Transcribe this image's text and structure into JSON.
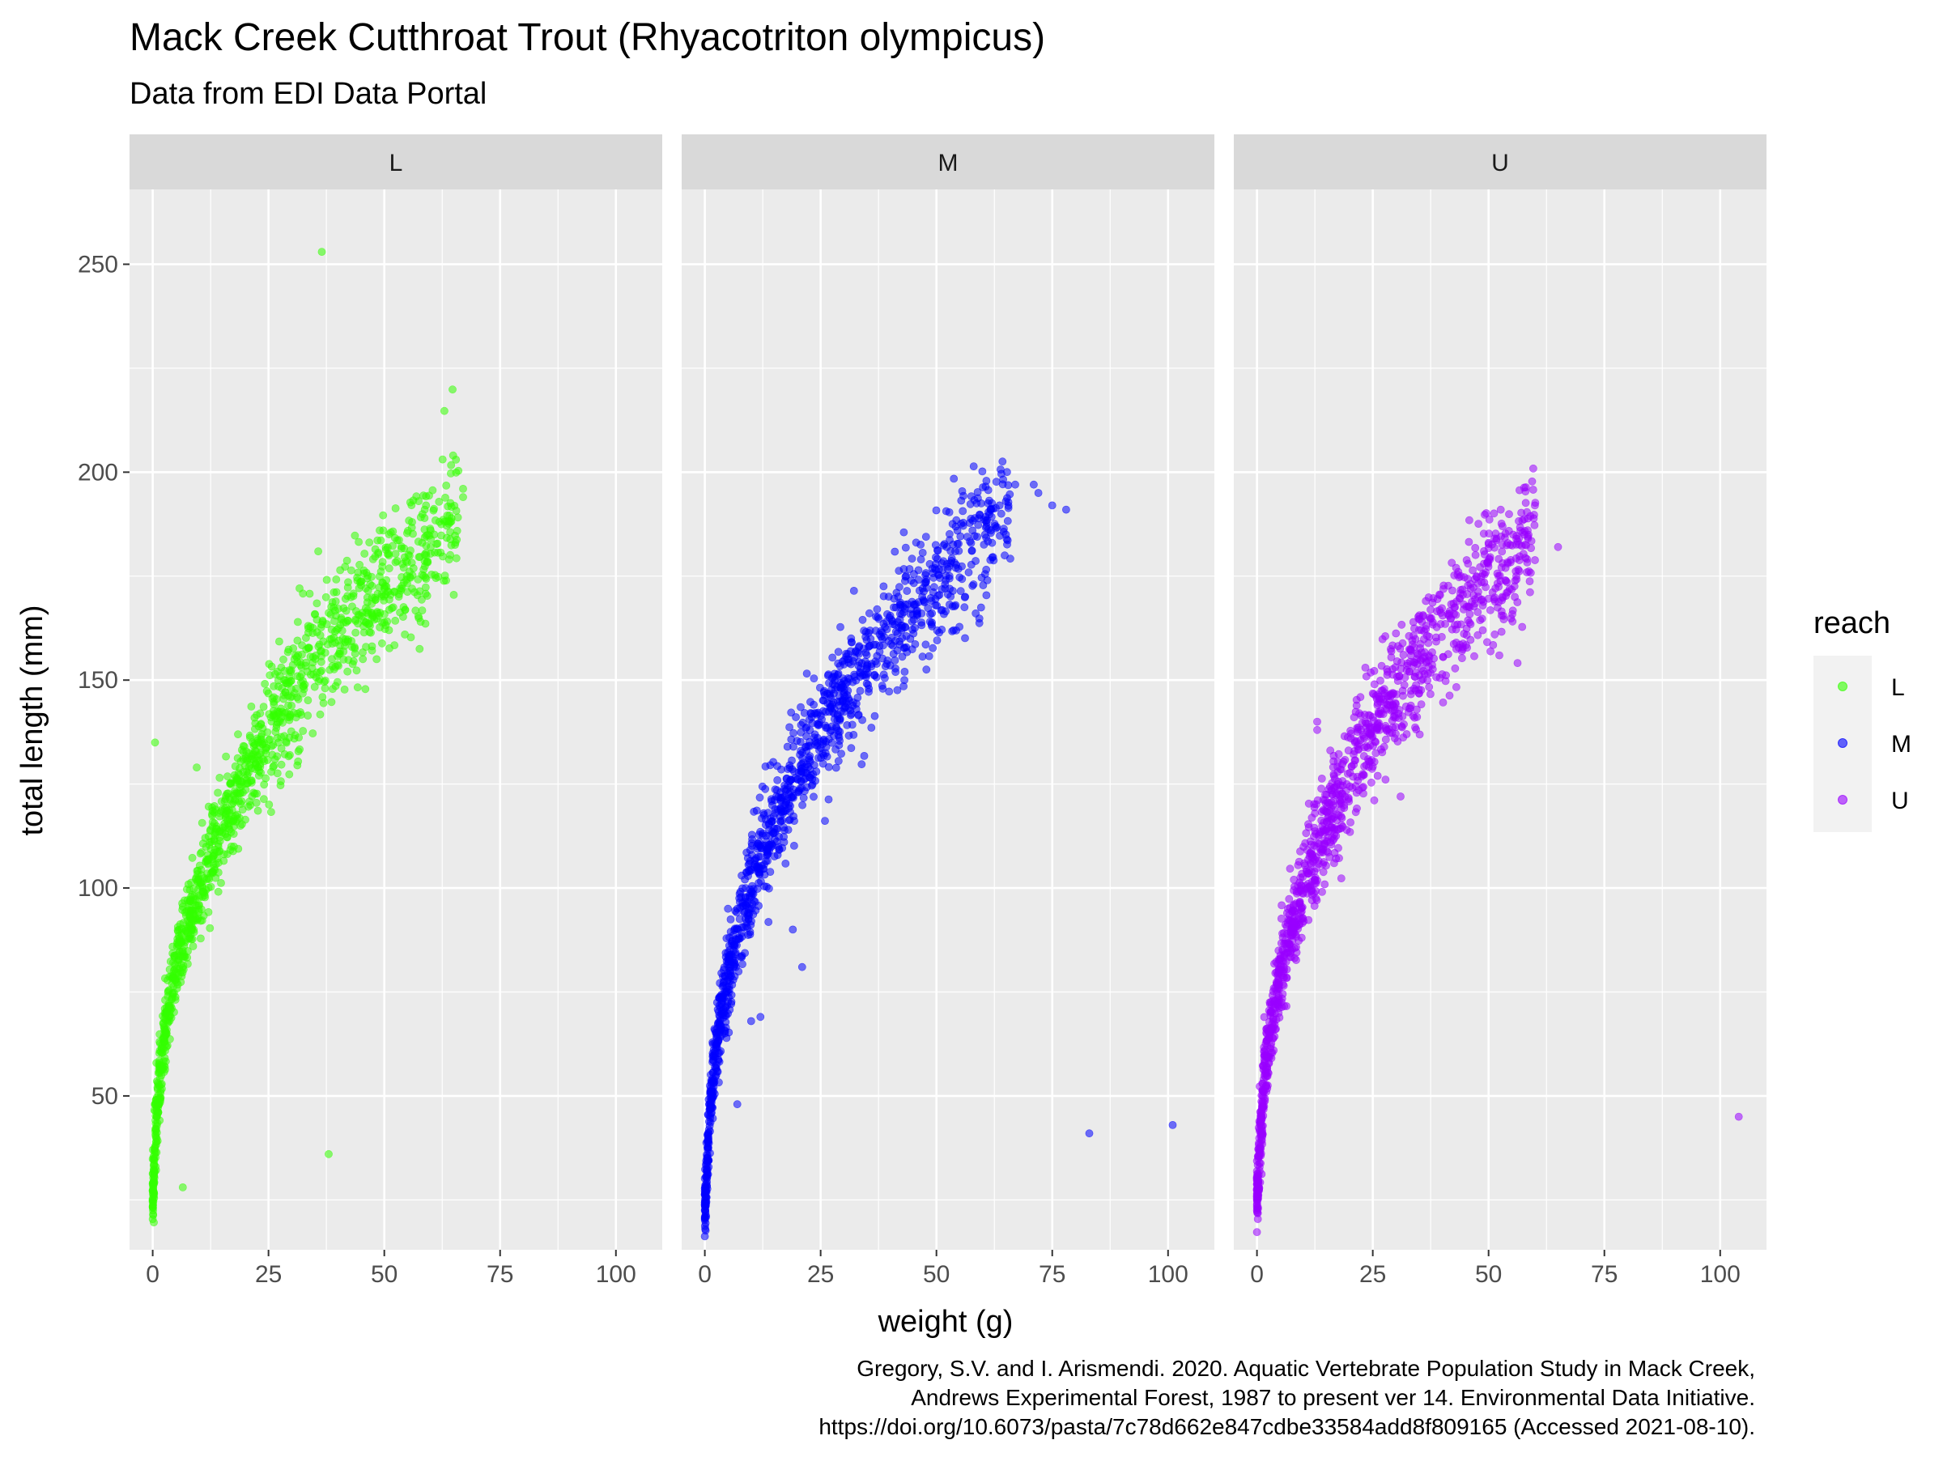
{
  "chart_data": {
    "type": "scatter",
    "title": "Mack Creek Cutthroat Trout (Rhyacotriton olympicus)",
    "subtitle": "Data from EDI Data Portal",
    "xlabel": "weight (g)",
    "ylabel": "total length (mm)",
    "xlim": [
      -5,
      110
    ],
    "ylim": [
      13,
      268
    ],
    "x_ticks": [
      0,
      25,
      50,
      75,
      100
    ],
    "x_tick_labels": [
      "0",
      "25",
      "50",
      "75",
      "100"
    ],
    "y_ticks": [
      50,
      100,
      150,
      200,
      250
    ],
    "y_tick_labels": [
      "50",
      "100",
      "150",
      "200",
      "250"
    ],
    "grid": true,
    "legend": {
      "title": "reach",
      "placement": "right"
    },
    "facets": [
      "L",
      "M",
      "U"
    ],
    "series": [
      {
        "name": "L",
        "color": "#33ff00",
        "trend": [
          [
            0,
            24
          ],
          [
            0.3,
            32
          ],
          [
            0.6,
            40
          ],
          [
            1,
            48
          ],
          [
            1.5,
            55
          ],
          [
            2,
            60
          ],
          [
            3,
            68
          ],
          [
            4,
            75
          ],
          [
            5,
            80
          ],
          [
            6,
            85
          ],
          [
            7,
            89
          ],
          [
            8,
            93
          ],
          [
            10,
            100
          ],
          [
            12,
            106
          ],
          [
            14,
            112
          ],
          [
            16,
            117
          ],
          [
            18,
            122
          ],
          [
            20,
            127
          ],
          [
            23,
            134
          ],
          [
            26,
            140
          ],
          [
            30,
            147
          ],
          [
            34,
            153
          ],
          [
            38,
            159
          ],
          [
            42,
            164
          ],
          [
            46,
            168
          ],
          [
            50,
            172
          ],
          [
            55,
            177
          ],
          [
            60,
            183
          ],
          [
            66,
            192
          ]
        ],
        "outliers": [
          [
            36.5,
            253
          ],
          [
            0.5,
            135
          ],
          [
            9.5,
            129
          ],
          [
            38,
            36
          ],
          [
            6.5,
            28
          ],
          [
            67,
            196
          ],
          [
            67,
            194
          ],
          [
            59,
            192
          ],
          [
            56,
            188
          ],
          [
            49,
            186
          ],
          [
            60,
            186
          ],
          [
            60,
            182
          ],
          [
            64,
            179
          ],
          [
            51,
            180
          ],
          [
            56,
            172
          ]
        ]
      },
      {
        "name": "M",
        "color": "#0000ff",
        "trend": [
          [
            0,
            23
          ],
          [
            0.3,
            30
          ],
          [
            0.6,
            37
          ],
          [
            1,
            45
          ],
          [
            1.5,
            52
          ],
          [
            2,
            58
          ],
          [
            3,
            66
          ],
          [
            4,
            73
          ],
          [
            5,
            78
          ],
          [
            6,
            84
          ],
          [
            8,
            93
          ],
          [
            10,
            100
          ],
          [
            12,
            106
          ],
          [
            14,
            112
          ],
          [
            16,
            117
          ],
          [
            18,
            123
          ],
          [
            20,
            128
          ],
          [
            23,
            134
          ],
          [
            26,
            140
          ],
          [
            30,
            147
          ],
          [
            34,
            153
          ],
          [
            38,
            159
          ],
          [
            42,
            164
          ],
          [
            46,
            169
          ],
          [
            50,
            173
          ],
          [
            55,
            180
          ],
          [
            60,
            186
          ],
          [
            66,
            193
          ]
        ],
        "outliers": [
          [
            83,
            41
          ],
          [
            101,
            43
          ],
          [
            21,
            81
          ],
          [
            7,
            48
          ],
          [
            12,
            69
          ],
          [
            10,
            68
          ],
          [
            18,
            114
          ],
          [
            19,
            90
          ],
          [
            7,
            95
          ],
          [
            5,
            95
          ],
          [
            67,
            197
          ],
          [
            71,
            197
          ],
          [
            72,
            195
          ],
          [
            65,
            193
          ],
          [
            78,
            191
          ],
          [
            75,
            192
          ],
          [
            64,
            190
          ],
          [
            65,
            185
          ],
          [
            62,
            183
          ],
          [
            61,
            174
          ],
          [
            58,
            173
          ],
          [
            52,
            174
          ]
        ]
      },
      {
        "name": "U",
        "color": "#9900ff",
        "trend": [
          [
            0,
            25
          ],
          [
            0.3,
            32
          ],
          [
            0.6,
            38
          ],
          [
            1,
            45
          ],
          [
            1.5,
            52
          ],
          [
            2,
            58
          ],
          [
            3,
            66
          ],
          [
            4,
            73
          ],
          [
            5,
            79
          ],
          [
            6,
            84
          ],
          [
            8,
            93
          ],
          [
            10,
            100
          ],
          [
            12,
            106
          ],
          [
            14,
            112
          ],
          [
            16,
            117
          ],
          [
            18,
            122
          ],
          [
            20,
            127
          ],
          [
            23,
            134
          ],
          [
            26,
            140
          ],
          [
            30,
            147
          ],
          [
            34,
            153
          ],
          [
            38,
            159
          ],
          [
            42,
            164
          ],
          [
            46,
            169
          ],
          [
            50,
            173
          ],
          [
            55,
            178
          ],
          [
            60,
            184
          ]
        ],
        "outliers": [
          [
            104,
            45
          ],
          [
            31,
            122
          ],
          [
            13,
            140
          ],
          [
            13,
            138
          ],
          [
            65,
            182
          ],
          [
            60,
            192
          ],
          [
            56,
            184
          ],
          [
            53,
            187
          ],
          [
            56,
            175
          ],
          [
            49,
            178
          ],
          [
            49,
            181
          ],
          [
            50,
            183
          ],
          [
            43,
            177
          ],
          [
            44,
            175
          ]
        ]
      }
    ]
  },
  "caption": {
    "line1": "Gregory, S.V. and I. Arismendi. 2020. Aquatic Vertebrate Population Study in Mack Creek,",
    "line2": "Andrews Experimental Forest, 1987 to present ver 14. Environmental Data Initiative.",
    "line3": "https://doi.org/10.6073/pasta/7c78d662e847cdbe33584add8f809165 (Accessed 2021-08-10)."
  }
}
